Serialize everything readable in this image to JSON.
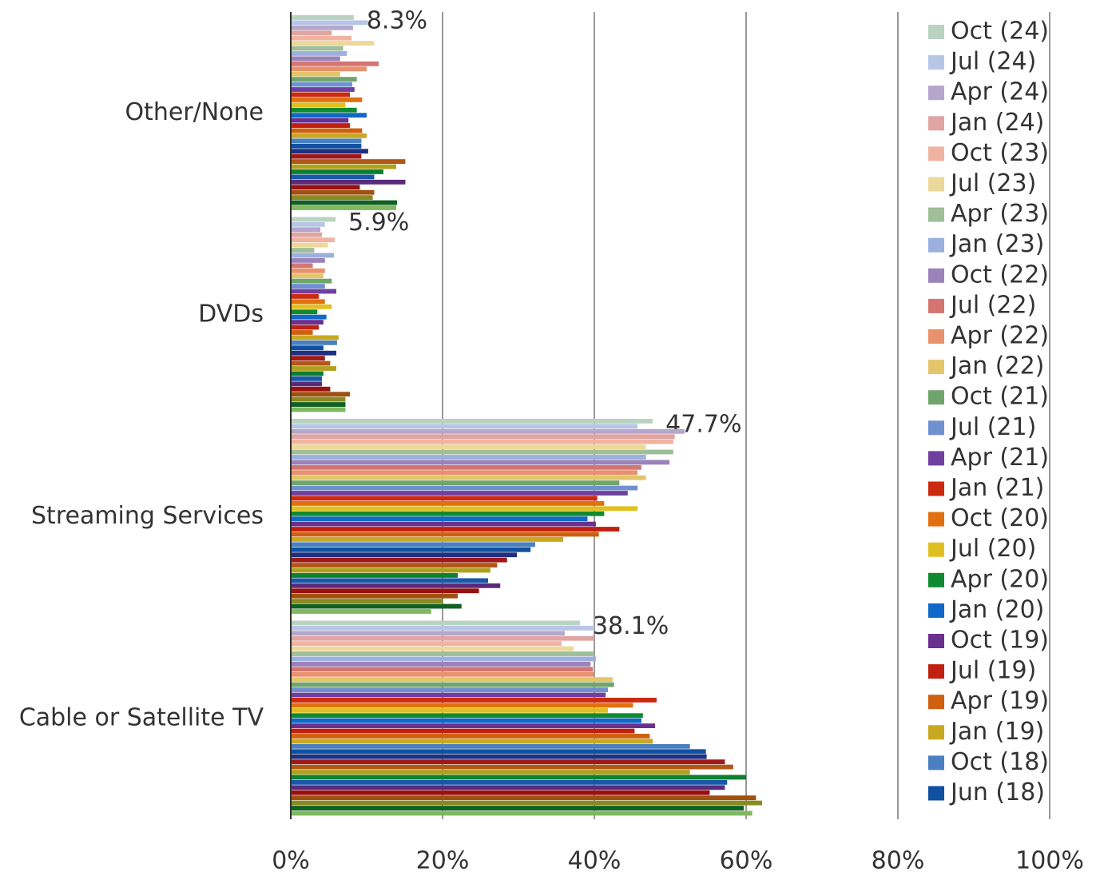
{
  "chart_data": {
    "type": "hbar",
    "categories": [
      "Other/None",
      "DVDs",
      "Streaming Services",
      "Cable or Satellite TV"
    ],
    "xlim": [
      0,
      100
    ],
    "xticks": [
      {
        "value": 0,
        "label": "0%"
      },
      {
        "value": 20,
        "label": "20%"
      },
      {
        "value": 40,
        "label": "40%"
      },
      {
        "value": 60,
        "label": "60%"
      },
      {
        "value": 80,
        "label": "80%"
      },
      {
        "value": 100,
        "label": "100%"
      }
    ],
    "grid": true,
    "legend": "right",
    "series": [
      {
        "name": "Oct (24)",
        "color": "#b9d3c0",
        "values": [
          8.3,
          5.9,
          47.7,
          38.1
        ],
        "value_labels": [
          "8.3%",
          "5.9%",
          "47.7%",
          "38.1%"
        ]
      },
      {
        "name": "Jul (24)",
        "color": "#b8c6e6",
        "values": [
          10.2,
          4.5,
          45.7,
          40.0
        ]
      },
      {
        "name": "Apr (24)",
        "color": "#b4a6cc",
        "values": [
          8.2,
          3.9,
          51.9,
          36.1
        ]
      },
      {
        "name": "Jan (24)",
        "color": "#e0a4a2",
        "values": [
          5.4,
          4.1,
          50.6,
          40.0
        ]
      },
      {
        "name": "Oct (23)",
        "color": "#f0b3a0",
        "values": [
          8.0,
          5.8,
          50.4,
          35.7
        ]
      },
      {
        "name": "Jul (23)",
        "color": "#ecd89a",
        "values": [
          11.0,
          4.9,
          46.8,
          37.3
        ]
      },
      {
        "name": "Apr (23)",
        "color": "#9ebf98",
        "values": [
          6.9,
          3.1,
          50.4,
          40.0
        ]
      },
      {
        "name": "Jan (23)",
        "color": "#9cb0de",
        "values": [
          7.4,
          5.7,
          46.8,
          40.2
        ]
      },
      {
        "name": "Oct (22)",
        "color": "#9b82ba",
        "values": [
          6.5,
          4.5,
          49.9,
          39.5
        ]
      },
      {
        "name": "Jul (22)",
        "color": "#d57572",
        "values": [
          11.6,
          2.9,
          46.2,
          39.8
        ]
      },
      {
        "name": "Apr (22)",
        "color": "#e9906c",
        "values": [
          10.0,
          4.5,
          45.7,
          40.0
        ]
      },
      {
        "name": "Jan (22)",
        "color": "#e3c56a",
        "values": [
          6.5,
          4.3,
          46.8,
          42.4
        ]
      },
      {
        "name": "Oct (21)",
        "color": "#6fa56c",
        "values": [
          8.7,
          5.4,
          43.3,
          42.6
        ]
      },
      {
        "name": "Jul (21)",
        "color": "#7090d0",
        "values": [
          8.1,
          4.5,
          45.7,
          41.8
        ]
      },
      {
        "name": "Apr (21)",
        "color": "#7040a0",
        "values": [
          8.4,
          6.0,
          44.4,
          41.5
        ]
      },
      {
        "name": "Jan (21)",
        "color": "#cc2a10",
        "values": [
          7.8,
          3.7,
          40.4,
          48.2
        ]
      },
      {
        "name": "Oct (20)",
        "color": "#e07010",
        "values": [
          9.4,
          4.5,
          41.3,
          45.1
        ]
      },
      {
        "name": "Jul (20)",
        "color": "#e0c020",
        "values": [
          7.2,
          5.4,
          45.7,
          41.8
        ]
      },
      {
        "name": "Apr (20)",
        "color": "#108a30",
        "values": [
          8.7,
          3.5,
          41.3,
          46.4
        ]
      },
      {
        "name": "Jan (20)",
        "color": "#1068c8",
        "values": [
          10.0,
          4.7,
          39.1,
          46.2
        ]
      },
      {
        "name": "Oct (19)",
        "color": "#6a3090",
        "values": [
          7.6,
          4.3,
          40.2,
          48.0
        ]
      },
      {
        "name": "Jul (19)",
        "color": "#c02010",
        "values": [
          7.8,
          3.7,
          43.3,
          45.3
        ]
      },
      {
        "name": "Apr (19)",
        "color": "#d06010",
        "values": [
          9.4,
          2.9,
          40.6,
          47.3
        ]
      },
      {
        "name": "Jan (19)",
        "color": "#c8a820",
        "values": [
          10.0,
          6.3,
          35.9,
          47.7
        ]
      },
      {
        "name": "Oct (18)",
        "color": "#4a80c0",
        "values": [
          9.3,
          6.1,
          32.2,
          52.6
        ]
      },
      {
        "name": "Jun (18)",
        "color": "#1050a0",
        "values": [
          9.3,
          4.3,
          31.6,
          54.7
        ]
      },
      {
        "color": "#203080",
        "values": [
          10.2,
          6.0,
          29.8,
          54.8
        ]
      },
      {
        "color": "#a01818",
        "values": [
          9.3,
          4.5,
          28.5,
          57.2
        ]
      },
      {
        "color": "#b05818",
        "values": [
          15.1,
          5.2,
          27.2,
          58.3
        ]
      },
      {
        "color": "#b0a020",
        "values": [
          13.9,
          6.0,
          26.3,
          52.6
        ]
      },
      {
        "color": "#0a8030",
        "values": [
          12.2,
          4.3,
          22.0,
          60.0
        ]
      },
      {
        "color": "#1858a8",
        "values": [
          11.0,
          4.1,
          26.0,
          57.5
        ]
      },
      {
        "color": "#5a2a7a",
        "values": [
          15.1,
          4.1,
          27.6,
          57.2
        ]
      },
      {
        "color": "#9a1010",
        "values": [
          9.1,
          5.2,
          24.8,
          55.2
        ]
      },
      {
        "color": "#a05010",
        "values": [
          11.0,
          7.8,
          22.0,
          61.3
        ]
      },
      {
        "color": "#8a8a20",
        "values": [
          10.8,
          7.2,
          20.0,
          62.1
        ]
      },
      {
        "color": "#106020",
        "values": [
          14.0,
          7.2,
          22.5,
          59.7
        ]
      },
      {
        "color": "#80b860",
        "values": [
          13.9,
          7.2,
          18.5,
          60.8
        ]
      }
    ]
  }
}
